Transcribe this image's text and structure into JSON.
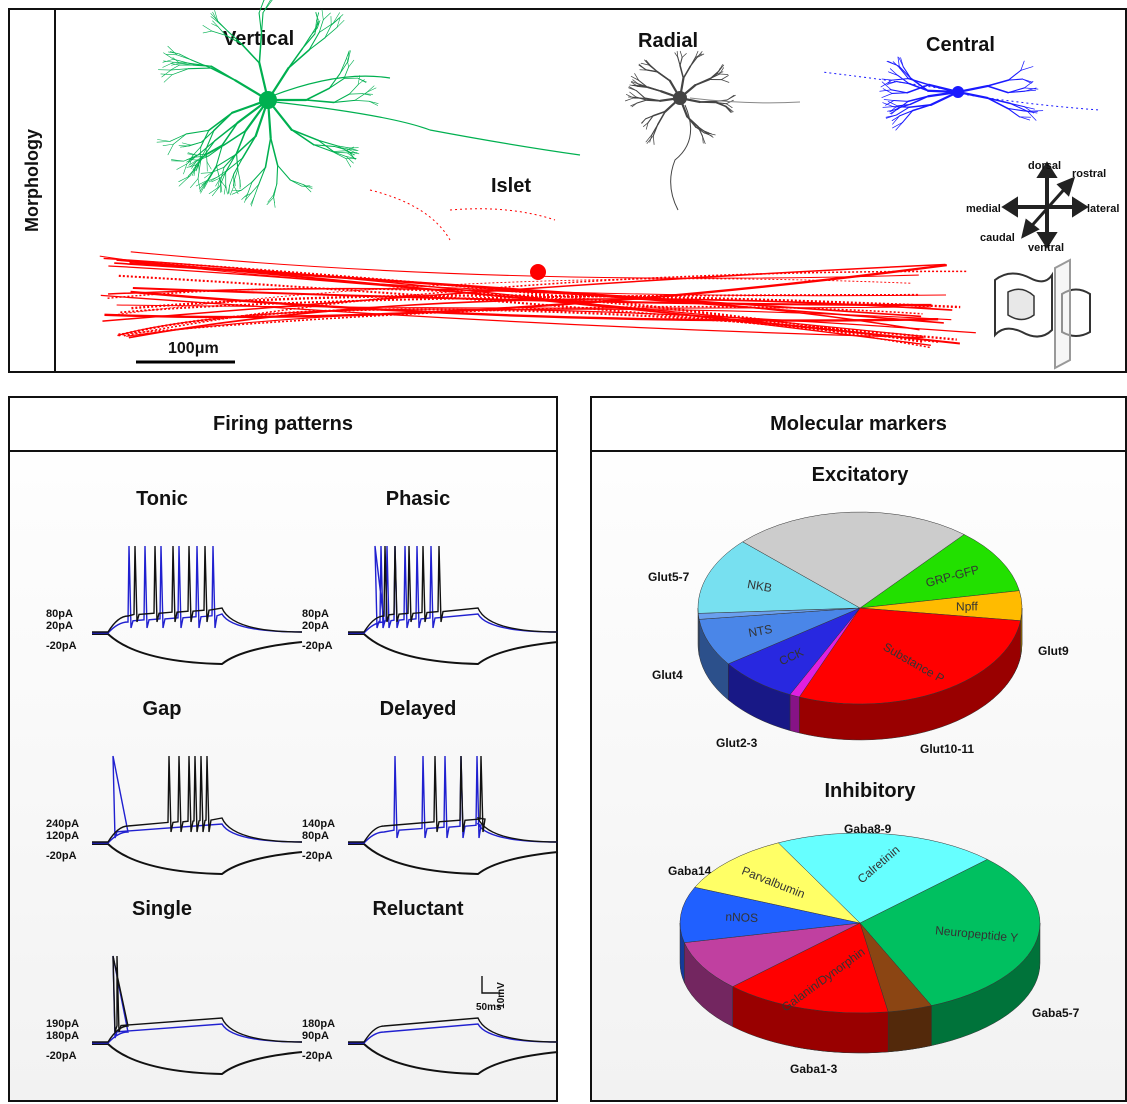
{
  "morphology": {
    "panel_label": "Morphology",
    "cells": [
      {
        "name": "Vertical",
        "color": "#00b050"
      },
      {
        "name": "Radial",
        "color": "#444444"
      },
      {
        "name": "Central",
        "color": "#1a1aff"
      },
      {
        "name": "Islet",
        "color": "#ff0000"
      }
    ],
    "scale_bar": "100μm",
    "orientation": {
      "dorsal": "dorsal",
      "ventral": "ventral",
      "rostral": "rostral",
      "caudal": "caudal",
      "medial": "medial",
      "lateral": "lateral"
    }
  },
  "firing": {
    "title": "Firing patterns",
    "patterns": [
      {
        "name": "Tonic",
        "currents": [
          "80pA",
          "20pA",
          "-20pA"
        ]
      },
      {
        "name": "Phasic",
        "currents": [
          "80pA",
          "20pA",
          "-20pA"
        ]
      },
      {
        "name": "Gap",
        "currents": [
          "240pA",
          "120pA",
          "-20pA"
        ]
      },
      {
        "name": "Delayed",
        "currents": [
          "140pA",
          "80pA",
          "-20pA"
        ]
      },
      {
        "name": "Single",
        "currents": [
          "190pA",
          "180pA",
          "-20pA"
        ]
      },
      {
        "name": "Reluctant",
        "currents": [
          "180pA",
          "90pA",
          "-20pA"
        ]
      }
    ],
    "scale": {
      "voltage": "10mV",
      "time": "50ms"
    }
  },
  "molecular": {
    "title": "Molecular markers",
    "excitatory": {
      "title": "Excitatory",
      "outer_labels": [
        "Glut5-7",
        "Glut4",
        "Glut2-3",
        "Glut10-11",
        "Glut9"
      ],
      "slices": [
        {
          "label": "GRP-GFP",
          "value": 11,
          "color": "#22e000"
        },
        {
          "label": "Npff",
          "value": 5,
          "color": "#ffbb00"
        },
        {
          "label": "Substance P",
          "value": 29,
          "color": "#ff0000"
        },
        {
          "label": "",
          "value": 1,
          "color": "#e020e0"
        },
        {
          "label": "CCK",
          "value": 8,
          "color": "#2828e0"
        },
        {
          "label": "NTS",
          "value": 8,
          "color": "#4a86e8"
        },
        {
          "label": "",
          "value": 1,
          "color": "#6aa0ee"
        },
        {
          "label": "NKB",
          "value": 13,
          "color": "#77e0f0"
        },
        {
          "label": "",
          "value": 24,
          "color": "#cccccc"
        }
      ]
    },
    "inhibitory": {
      "title": "Inhibitory",
      "outer_labels": [
        "Gaba8-9",
        "Gaba14",
        "Gaba5-7",
        "Gaba1-3"
      ],
      "slices": [
        {
          "label": "Neuropeptide Y",
          "value": 31,
          "color": "#00c060"
        },
        {
          "label": "",
          "value": 4,
          "color": "#8b4513"
        },
        {
          "label": "Galanin/Dynorphin",
          "value": 15,
          "color": "#ff0000"
        },
        {
          "label": "",
          "value": 9,
          "color": "#c040a0"
        },
        {
          "label": "nNOS",
          "value": 10,
          "color": "#2060ff"
        },
        {
          "label": "Parvalbumin",
          "value": 11,
          "color": "#ffff66"
        },
        {
          "label": "Calretinin",
          "value": 20,
          "color": "#66ffff"
        }
      ]
    }
  }
}
